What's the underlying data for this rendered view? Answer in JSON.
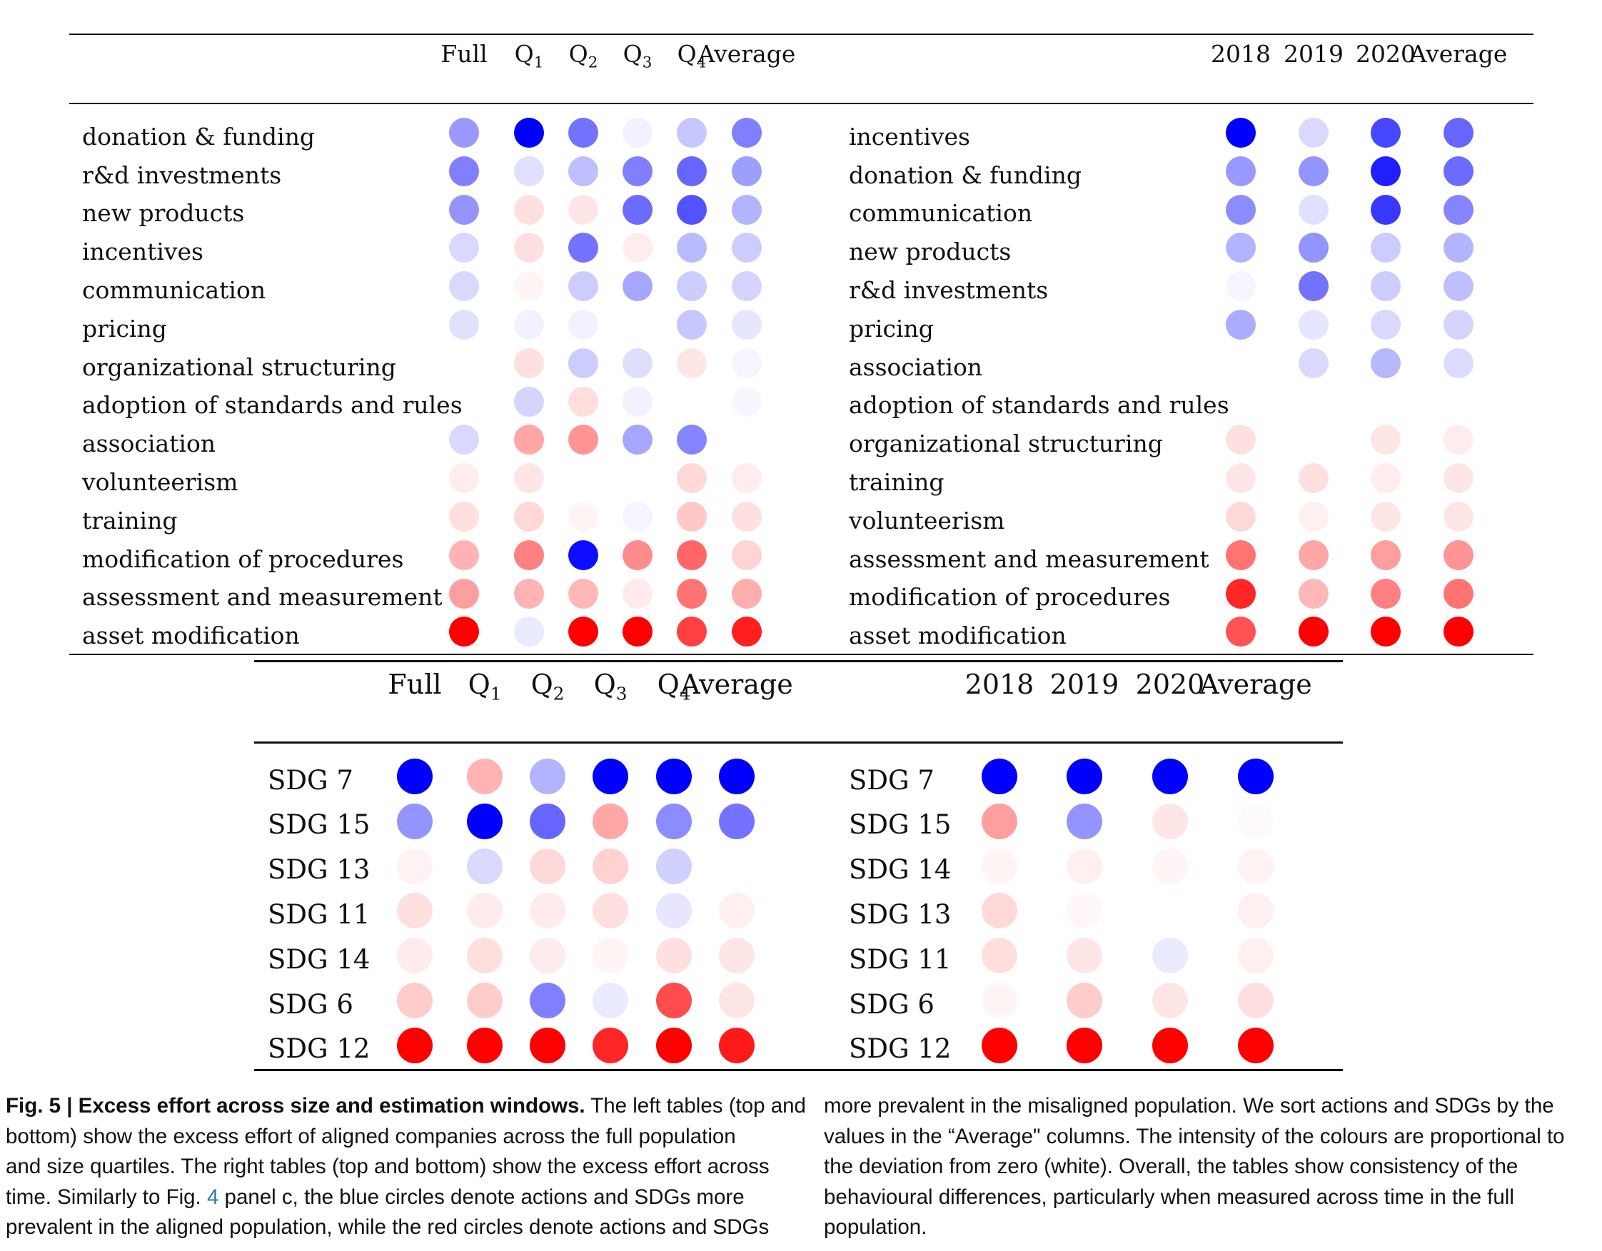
{
  "table_top_left": {
    "columns": [
      "Full",
      "Q1",
      "Q2",
      "Q3",
      "Q4",
      "Average"
    ],
    "rows": [
      {
        "label": "donation & funding",
        "values": [
          0.4,
          1.0,
          0.55,
          0.05,
          0.22,
          0.5
        ]
      },
      {
        "label": "r&d investments",
        "values": [
          0.5,
          0.12,
          0.25,
          0.5,
          0.6,
          0.38
        ]
      },
      {
        "label": "new products",
        "values": [
          0.42,
          -0.12,
          -0.1,
          0.58,
          0.68,
          0.3
        ]
      },
      {
        "label": "incentives",
        "values": [
          0.15,
          -0.12,
          0.55,
          -0.07,
          0.27,
          0.2
        ]
      },
      {
        "label": "communication",
        "values": [
          0.15,
          -0.04,
          0.2,
          0.35,
          0.2,
          0.17
        ]
      },
      {
        "label": "pricing",
        "values": [
          0.12,
          0.05,
          0.05,
          0.0,
          0.22,
          0.1
        ]
      },
      {
        "label": "organizational structuring",
        "values": [
          0.0,
          -0.12,
          0.2,
          0.13,
          -0.1,
          0.04
        ]
      },
      {
        "label": "adoption of standards and rules",
        "values": [
          0.0,
          0.17,
          -0.13,
          0.05,
          0.0,
          0.03
        ]
      },
      {
        "label": "association",
        "values": [
          0.15,
          -0.35,
          -0.42,
          0.35,
          0.48,
          0.0
        ]
      },
      {
        "label": "volunteerism",
        "values": [
          -0.07,
          -0.1,
          0.0,
          0.0,
          -0.15,
          -0.07
        ]
      },
      {
        "label": "training",
        "values": [
          -0.12,
          -0.15,
          -0.04,
          0.04,
          -0.22,
          -0.12
        ]
      },
      {
        "label": "modification of procedures",
        "values": [
          -0.3,
          -0.5,
          0.95,
          -0.45,
          -0.6,
          -0.17
        ]
      },
      {
        "label": "assessment and measurement",
        "values": [
          -0.38,
          -0.3,
          -0.28,
          -0.08,
          -0.55,
          -0.32
        ]
      },
      {
        "label": "asset modification",
        "values": [
          -1.0,
          0.08,
          -1.0,
          -1.0,
          -0.75,
          -0.88
        ]
      }
    ]
  },
  "table_top_right": {
    "columns": [
      "2018",
      "2019",
      "2020",
      "Average"
    ],
    "rows": [
      {
        "label": "incentives",
        "values": [
          1.0,
          0.15,
          0.72,
          0.6
        ]
      },
      {
        "label": "donation & funding",
        "values": [
          0.4,
          0.42,
          0.88,
          0.58
        ]
      },
      {
        "label": "communication",
        "values": [
          0.45,
          0.12,
          0.78,
          0.48
        ]
      },
      {
        "label": "new products",
        "values": [
          0.3,
          0.42,
          0.2,
          0.3
        ]
      },
      {
        "label": "r&d investments",
        "values": [
          0.04,
          0.55,
          0.2,
          0.25
        ]
      },
      {
        "label": "pricing",
        "values": [
          0.32,
          0.1,
          0.15,
          0.17
        ]
      },
      {
        "label": "association",
        "values": [
          0.0,
          0.15,
          0.28,
          0.14
        ]
      },
      {
        "label": "adoption of standards and rules",
        "values": [
          0.0,
          0.0,
          0.0,
          0.0
        ]
      },
      {
        "label": "organizational structuring",
        "values": [
          -0.12,
          0.0,
          -0.1,
          -0.07
        ]
      },
      {
        "label": "training",
        "values": [
          -0.1,
          -0.12,
          -0.07,
          -0.1
        ]
      },
      {
        "label": "volunteerism",
        "values": [
          -0.15,
          -0.06,
          -0.1,
          -0.1
        ]
      },
      {
        "label": "assessment and measurement",
        "values": [
          -0.55,
          -0.35,
          -0.38,
          -0.42
        ]
      },
      {
        "label": "modification of procedures",
        "values": [
          -0.85,
          -0.28,
          -0.5,
          -0.55
        ]
      },
      {
        "label": "asset modification",
        "values": [
          -0.68,
          -1.0,
          -1.0,
          -1.0
        ]
      }
    ]
  },
  "table_bottom_left": {
    "columns": [
      "Full",
      "Q1",
      "Q2",
      "Q3",
      "Q4",
      "Average"
    ],
    "rows": [
      {
        "label": "SDG 7",
        "values": [
          1.0,
          -0.3,
          0.3,
          1.0,
          1.0,
          1.0
        ]
      },
      {
        "label": "SDG 15",
        "values": [
          0.42,
          1.0,
          0.6,
          -0.35,
          0.45,
          0.55
        ]
      },
      {
        "label": "SDG 13",
        "values": [
          -0.05,
          0.15,
          -0.15,
          -0.18,
          0.18,
          0.0
        ]
      },
      {
        "label": "SDG 11",
        "values": [
          -0.12,
          -0.08,
          -0.08,
          -0.12,
          0.1,
          -0.06
        ]
      },
      {
        "label": "SDG 14",
        "values": [
          -0.08,
          -0.13,
          -0.08,
          -0.04,
          -0.12,
          -0.1
        ]
      },
      {
        "label": "SDG 6",
        "values": [
          -0.2,
          -0.2,
          0.5,
          0.08,
          -0.7,
          -0.1
        ]
      },
      {
        "label": "SDG 12",
        "values": [
          -1.0,
          -1.0,
          -1.0,
          -0.85,
          -1.0,
          -0.9
        ]
      }
    ]
  },
  "table_bottom_right": {
    "columns": [
      "2018",
      "2019",
      "2020",
      "Average"
    ],
    "rows": [
      {
        "label": "SDG 7",
        "values": [
          1.0,
          1.0,
          1.0,
          1.0
        ]
      },
      {
        "label": "SDG 15",
        "values": [
          -0.38,
          0.42,
          -0.1,
          -0.02
        ]
      },
      {
        "label": "SDG 14",
        "values": [
          -0.04,
          -0.06,
          -0.04,
          -0.05
        ]
      },
      {
        "label": "SDG 13",
        "values": [
          -0.15,
          -0.03,
          0.0,
          -0.06
        ]
      },
      {
        "label": "SDG 11",
        "values": [
          -0.13,
          -0.1,
          0.08,
          -0.06
        ]
      },
      {
        "label": "SDG 6",
        "values": [
          -0.04,
          -0.2,
          -0.1,
          -0.12
        ]
      },
      {
        "label": "SDG 12",
        "values": [
          -1.0,
          -1.0,
          -1.0,
          -1.0
        ]
      }
    ]
  },
  "colors": {
    "positive": "#0000ff",
    "negative": "#ff0000",
    "zero": "#ffffff",
    "link": "#2a7ab0"
  },
  "caption": {
    "col1_lines": [
      "|<b>Fig. 5 | Excess effort across size and estimation windows.</b> The left tables (top and",
      "bottom) show the excess effort of aligned companies across the full population",
      "and size quartiles. The right tables (top and bottom) show the excess effort across",
      "time. Similarly to Fig. <span class=\"link\">4</span> panel c, the blue circles denote actions and SDGs more",
      "prevalent in the aligned population, while the red circles denote actions and SDGs"
    ],
    "col2_lines": [
      "more prevalent in the misaligned population. We sort actions and SDGs by the",
      "values in the “Average\" columns. The intensity of the colours are proportional to",
      "the deviation from zero (white). Overall, the tables show consistency of the",
      "behavioural differences, particularly when measured across time in the full",
      "population."
    ]
  }
}
